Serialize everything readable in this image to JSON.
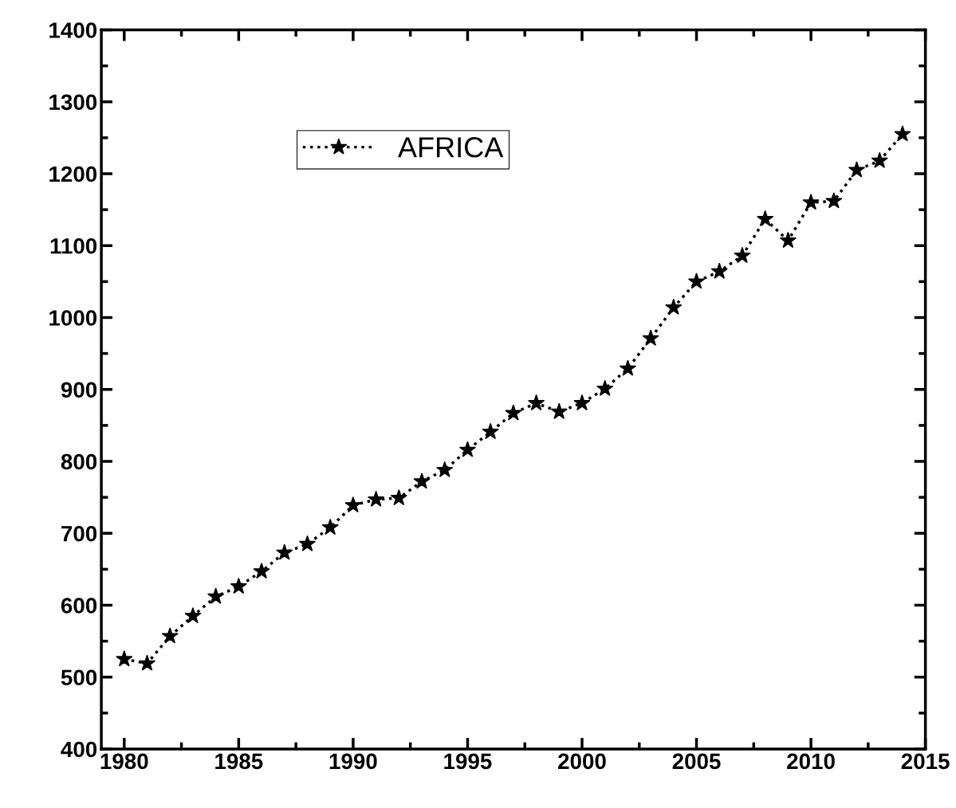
{
  "chart_data": {
    "type": "line",
    "x": [
      1980,
      1981,
      1982,
      1983,
      1984,
      1985,
      1986,
      1987,
      1988,
      1989,
      1990,
      1991,
      1992,
      1993,
      1994,
      1995,
      1996,
      1997,
      1998,
      1999,
      2000,
      2001,
      2002,
      2003,
      2004,
      2005,
      2006,
      2007,
      2008,
      2009,
      2010,
      2011,
      2012,
      2013,
      2014
    ],
    "series": [
      {
        "name": "AFRICA",
        "color": "#000000",
        "values": [
          525,
          519,
          557,
          585,
          612,
          626,
          647,
          673,
          685,
          708,
          739,
          747,
          749,
          772,
          788,
          816,
          841,
          867,
          881,
          869,
          881,
          901,
          929,
          971,
          1014,
          1050,
          1064,
          1086,
          1137,
          1107,
          1160,
          1162,
          1205,
          1218,
          1255
        ]
      }
    ],
    "xlim": [
      1979,
      2015
    ],
    "xticks": [
      1980,
      1985,
      1990,
      1995,
      2000,
      2005,
      2010,
      2015
    ],
    "ylim": [
      400,
      1400
    ],
    "yticks": [
      400,
      500,
      600,
      700,
      800,
      900,
      1000,
      1100,
      1200,
      1300,
      1400
    ],
    "grid": false,
    "legend": "top left",
    "marker": "star",
    "line_style": "dotted"
  }
}
